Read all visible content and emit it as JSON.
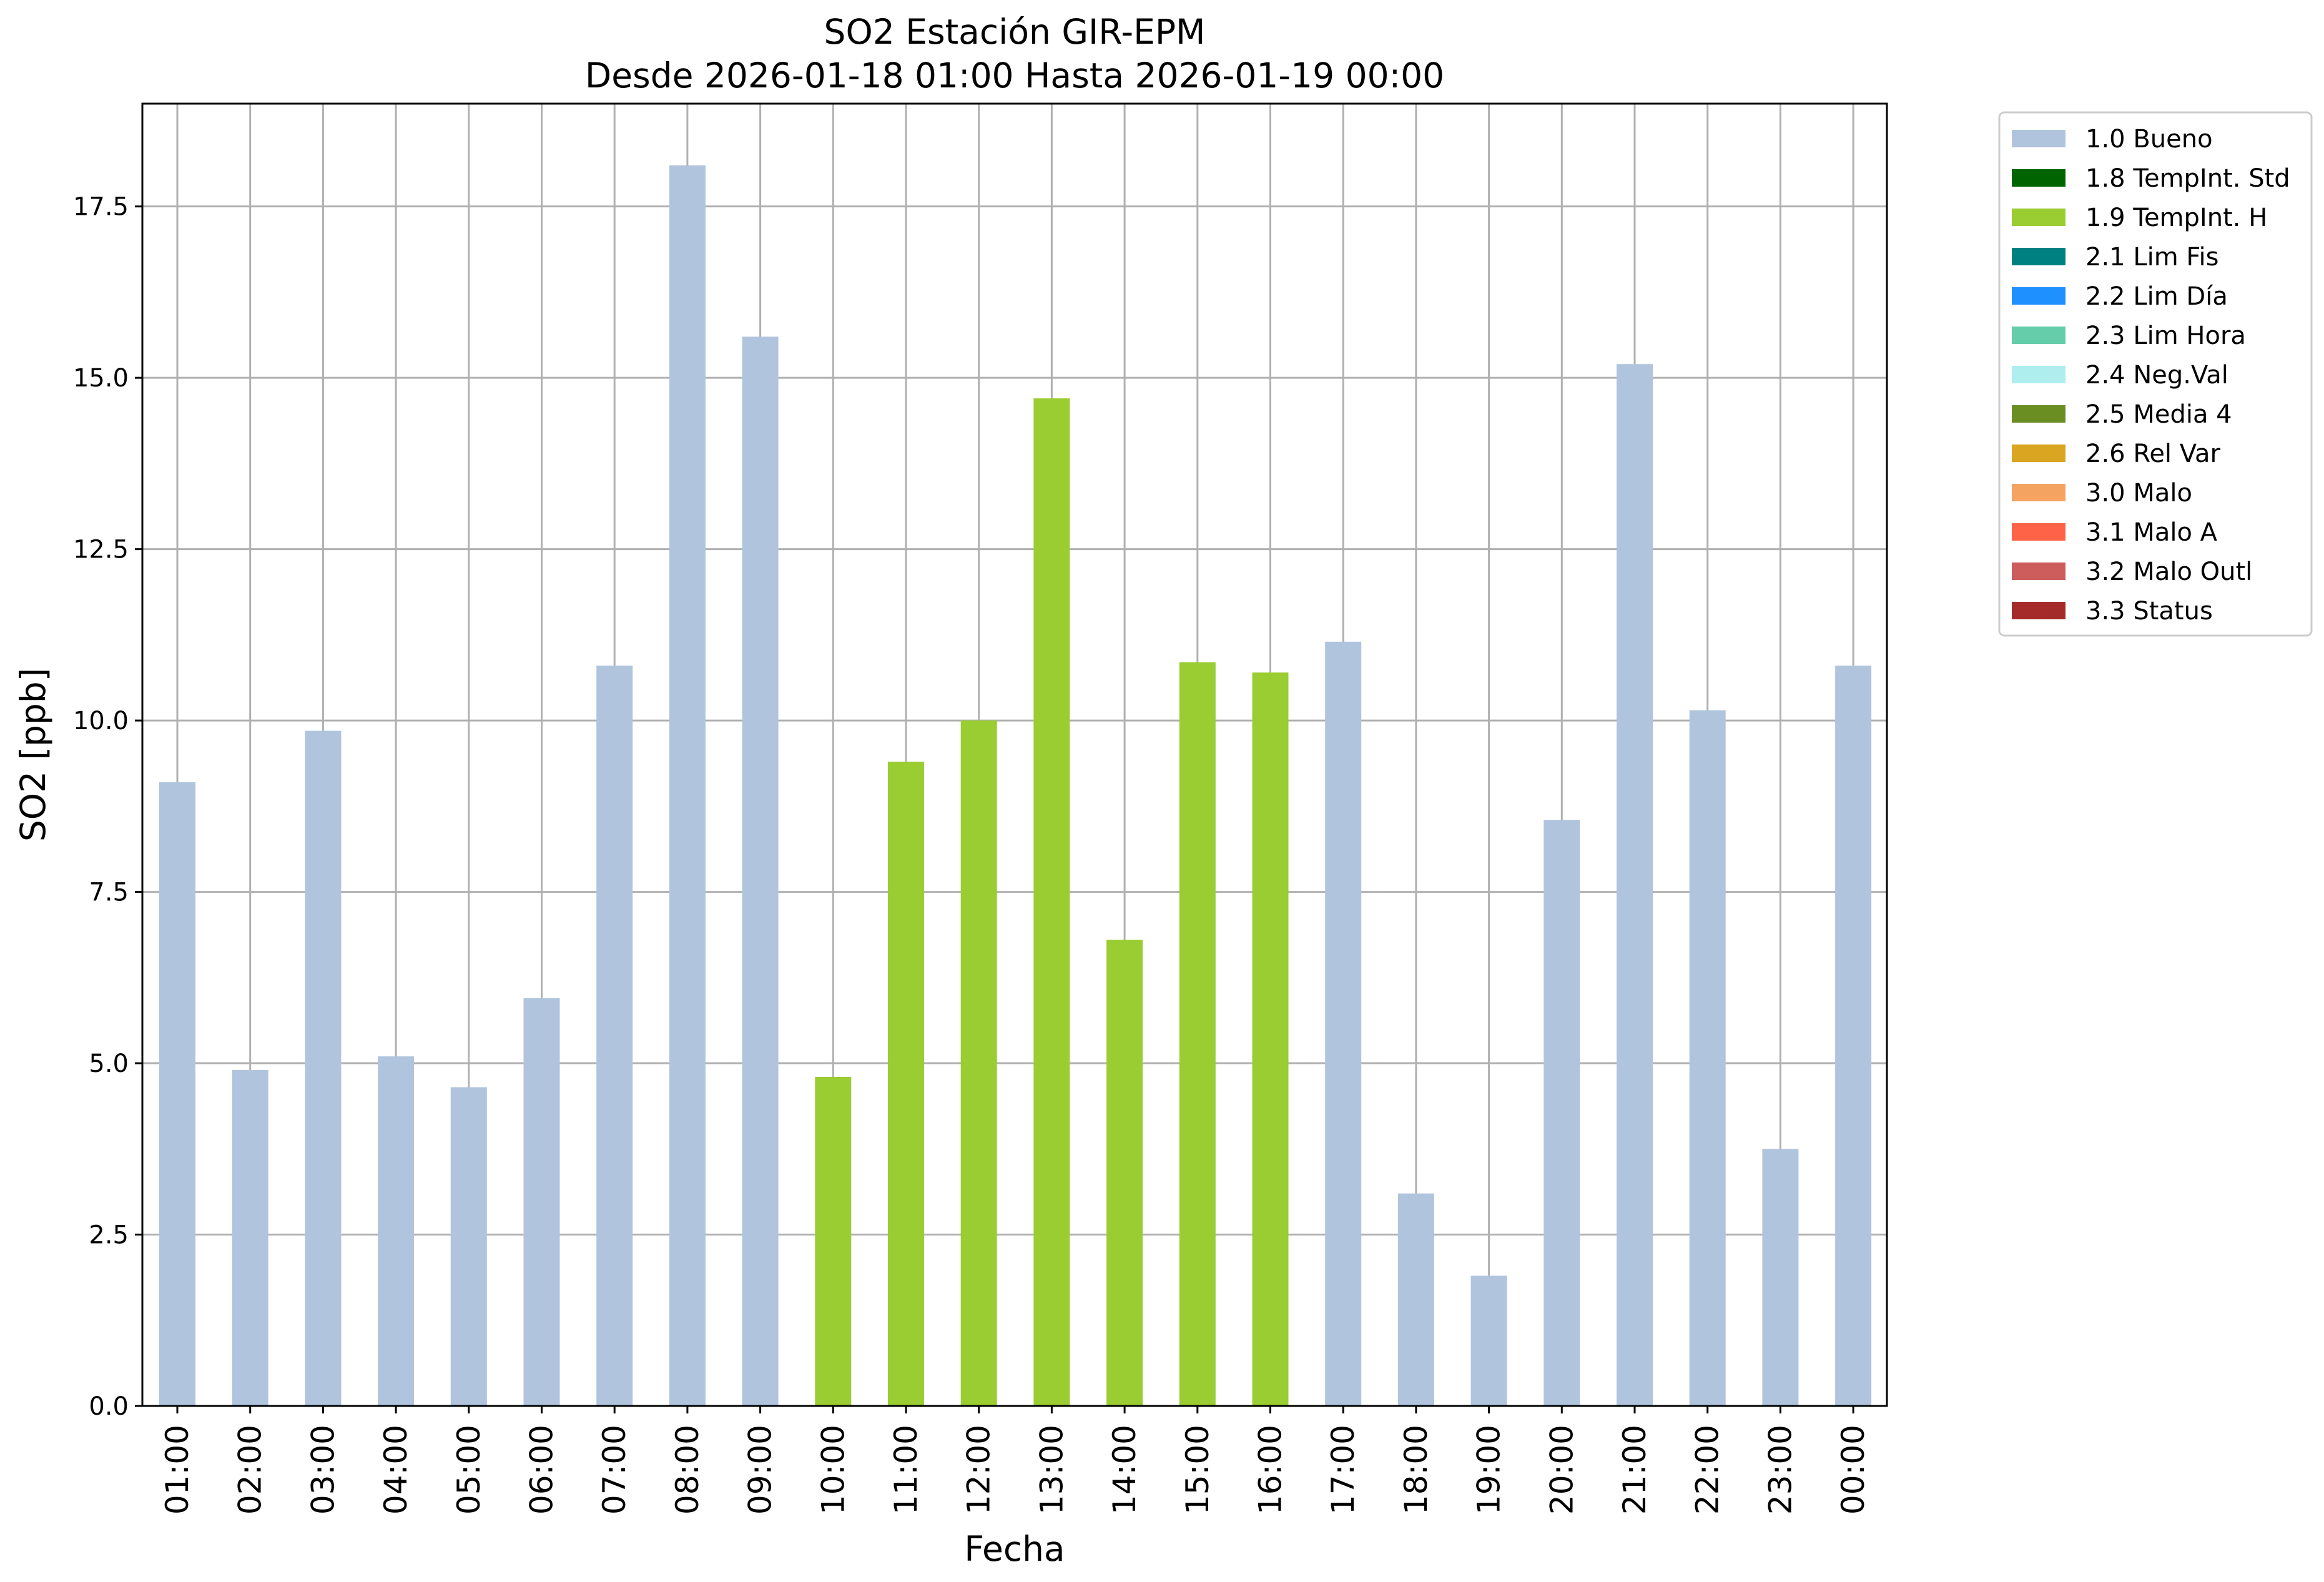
{
  "chart_data": {
    "type": "bar",
    "title": "SO2 Estación GIR-EPM",
    "subtitle": "Desde 2026-01-18 01:00 Hasta 2026-01-19 00:00",
    "xlabel": "Fecha",
    "ylabel": "SO2 [ppb]",
    "ylim": [
      0,
      19
    ],
    "yticks": [
      0.0,
      2.5,
      5.0,
      7.5,
      10.0,
      12.5,
      15.0,
      17.5
    ],
    "ytick_labels": [
      "0.0",
      "2.5",
      "5.0",
      "7.5",
      "10.0",
      "12.5",
      "15.0",
      "17.5"
    ],
    "grid": true,
    "legend_position": "outside-right-top",
    "categories": [
      "01:00",
      "02:00",
      "03:00",
      "04:00",
      "05:00",
      "06:00",
      "07:00",
      "08:00",
      "09:00",
      "10:00",
      "11:00",
      "12:00",
      "13:00",
      "14:00",
      "15:00",
      "16:00",
      "17:00",
      "18:00",
      "19:00",
      "20:00",
      "21:00",
      "22:00",
      "23:00",
      "00:00"
    ],
    "values": [
      9.1,
      4.9,
      9.85,
      5.1,
      4.65,
      5.95,
      10.8,
      18.1,
      15.6,
      4.8,
      9.4,
      10.0,
      14.7,
      6.8,
      10.85,
      10.7,
      11.15,
      3.1,
      1.9,
      8.55,
      15.2,
      10.15,
      3.75,
      10.8
    ],
    "quality_flags": [
      "1.0 Bueno",
      "1.0 Bueno",
      "1.0 Bueno",
      "1.0 Bueno",
      "1.0 Bueno",
      "1.0 Bueno",
      "1.0 Bueno",
      "1.0 Bueno",
      "1.0 Bueno",
      "1.9 TempInt. H",
      "1.9 TempInt. H",
      "1.9 TempInt. H",
      "1.9 TempInt. H",
      "1.9 TempInt. H",
      "1.9 TempInt. H",
      "1.9 TempInt. H",
      "1.0 Bueno",
      "1.0 Bueno",
      "1.0 Bueno",
      "1.0 Bueno",
      "1.0 Bueno",
      "1.0 Bueno",
      "1.0 Bueno",
      "1.0 Bueno"
    ],
    "legend": [
      {
        "label": "1.0 Bueno",
        "color": "#b0c4de"
      },
      {
        "label": "1.8 TempInt. Std",
        "color": "#006400"
      },
      {
        "label": "1.9 TempInt. H",
        "color": "#9acd32"
      },
      {
        "label": "2.1 Lim Fis",
        "color": "#008080"
      },
      {
        "label": "2.2 Lim Día",
        "color": "#1e90ff"
      },
      {
        "label": "2.3 Lim Hora",
        "color": "#66cdaa"
      },
      {
        "label": "2.4 Neg.Val",
        "color": "#afeeee"
      },
      {
        "label": "2.5 Media 4",
        "color": "#6b8e23"
      },
      {
        "label": "2.6 Rel Var",
        "color": "#daa520"
      },
      {
        "label": "3.0 Malo",
        "color": "#f4a460"
      },
      {
        "label": "3.1 Malo A",
        "color": "#ff6347"
      },
      {
        "label": "3.2 Malo Outl",
        "color": "#cd5c5c"
      },
      {
        "label": "3.3 Status",
        "color": "#a52a2a"
      }
    ]
  }
}
